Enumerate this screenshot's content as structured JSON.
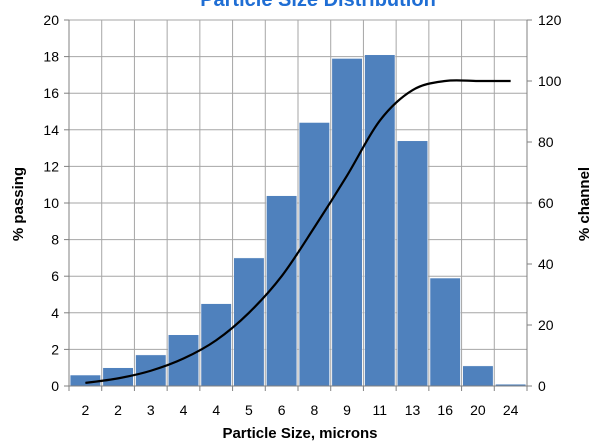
{
  "chart_data": {
    "type": "bar",
    "title": "Particle Size Distribution",
    "xlabel": "Particle Size, microns",
    "ylabel": "% passing",
    "y2label": "% channel",
    "categories": [
      "2",
      "2",
      "3",
      "4",
      "4",
      "5",
      "6",
      "8",
      "9",
      "11",
      "13",
      "16",
      "20",
      "24"
    ],
    "ylim": [
      0,
      20
    ],
    "y2lim": [
      0,
      120
    ],
    "yticks": [
      "0",
      "2",
      "4",
      "6",
      "8",
      "10",
      "12",
      "14",
      "16",
      "18",
      "20"
    ],
    "y2ticks": [
      "0",
      "20",
      "40",
      "60",
      "80",
      "100",
      "120"
    ],
    "grid": true,
    "series": [
      {
        "type": "bar",
        "axis": "left",
        "color": "#4f81bd",
        "values": [
          0.6,
          1.0,
          1.7,
          2.8,
          4.5,
          7.0,
          10.4,
          14.4,
          17.9,
          18.1,
          13.4,
          5.9,
          1.1,
          0.1
        ]
      },
      {
        "type": "line",
        "axis": "right",
        "color": "#000000",
        "values": [
          1,
          2.5,
          5,
          9,
          15,
          24,
          36,
          52,
          69,
          87,
          97,
          100,
          100,
          100
        ]
      }
    ]
  }
}
